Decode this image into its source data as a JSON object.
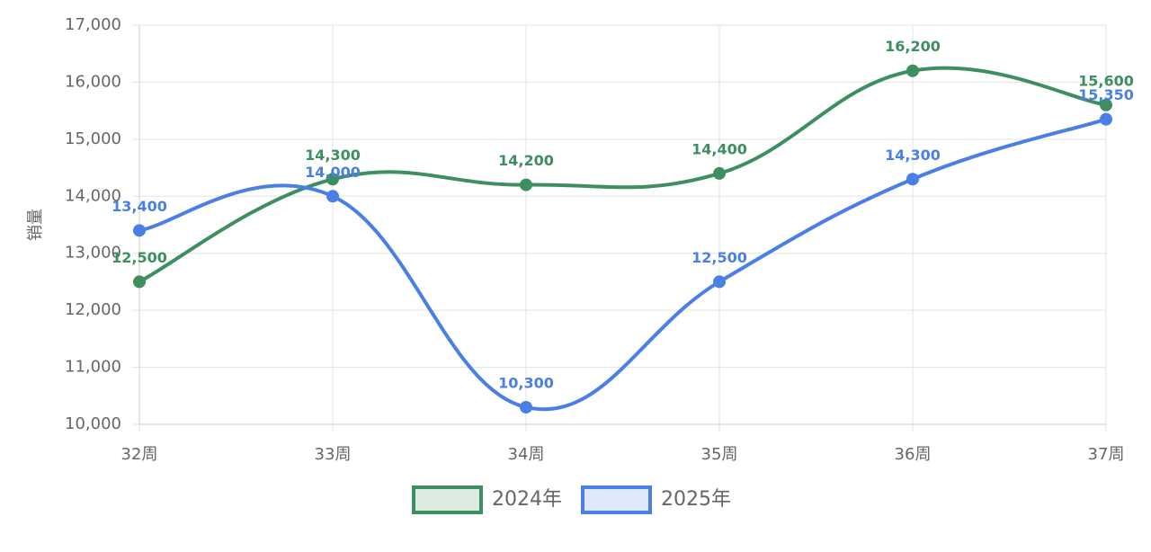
{
  "chart_data": {
    "type": "line",
    "y_label": "销量",
    "categories": [
      "32周",
      "33周",
      "34周",
      "35周",
      "36周",
      "37周"
    ],
    "series": [
      {
        "name": "2024年",
        "color": "#3d8f5f",
        "values": [
          12500,
          14300,
          14200,
          14400,
          16200,
          15600
        ],
        "value_labels": [
          "12,500",
          "14,300",
          "14,200",
          "14,400",
          "16,200",
          "15,600"
        ]
      },
      {
        "name": "2025年",
        "color": "#4a7fe5",
        "values": [
          13400,
          14000,
          10300,
          12500,
          14300,
          15350
        ],
        "value_labels": [
          "13,400",
          "14,000",
          "10,300",
          "12,500",
          "14,300",
          "15,350"
        ]
      }
    ],
    "ylim": [
      10000,
      17000
    ],
    "yticks": [
      {
        "value": 10000,
        "label": "10,000"
      },
      {
        "value": 11000,
        "label": "11,000"
      },
      {
        "value": 12000,
        "label": "12,000"
      },
      {
        "value": 13000,
        "label": "13,000"
      },
      {
        "value": 14000,
        "label": "14,000"
      },
      {
        "value": 15000,
        "label": "15,000"
      },
      {
        "value": 16000,
        "label": "16,000"
      },
      {
        "value": 17000,
        "label": "17,000"
      }
    ],
    "grid": true,
    "legend": "bottom"
  }
}
